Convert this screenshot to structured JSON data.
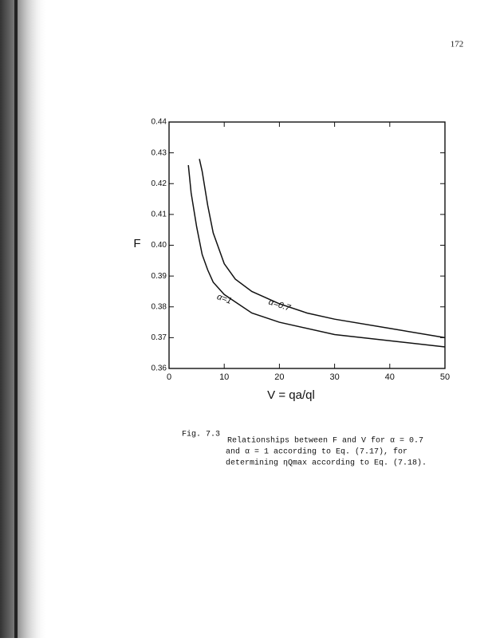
{
  "page_number": "172",
  "chart_data": {
    "type": "line",
    "xlabel": "V = qa/ql",
    "ylabel": "F",
    "xlim": [
      0,
      50
    ],
    "xticks": [
      0,
      10,
      20,
      30,
      40,
      50
    ],
    "ylim": [
      0.36,
      0.44
    ],
    "yticks": [
      0.36,
      0.37,
      0.38,
      0.39,
      {
        "value": 0.4,
        "label": "0.40"
      },
      0.41,
      0.42,
      0.43,
      0.44
    ],
    "series": [
      {
        "name": "α=0.7",
        "color": "#111111",
        "x": [
          5.5,
          6,
          7,
          8,
          10,
          12,
          15,
          20,
          25,
          30,
          40,
          50
        ],
        "values": [
          0.428,
          0.424,
          0.413,
          0.404,
          0.394,
          0.389,
          0.385,
          0.381,
          0.378,
          0.376,
          0.373,
          0.37
        ]
      },
      {
        "name": "α=1",
        "color": "#111111",
        "x": [
          3.5,
          4,
          5,
          6,
          7,
          8,
          10,
          15,
          20,
          30,
          40,
          50
        ],
        "values": [
          0.426,
          0.417,
          0.406,
          0.397,
          0.392,
          0.388,
          0.384,
          0.378,
          0.375,
          0.371,
          0.369,
          0.367
        ]
      }
    ]
  },
  "caption": {
    "label": "Fig. 7.3",
    "lines": [
      "Relationships between F and V for α = 0.7",
      "and α = 1 according to Eq. (7.17), for",
      "determining ηQmax according to Eq. (7.18)."
    ]
  }
}
